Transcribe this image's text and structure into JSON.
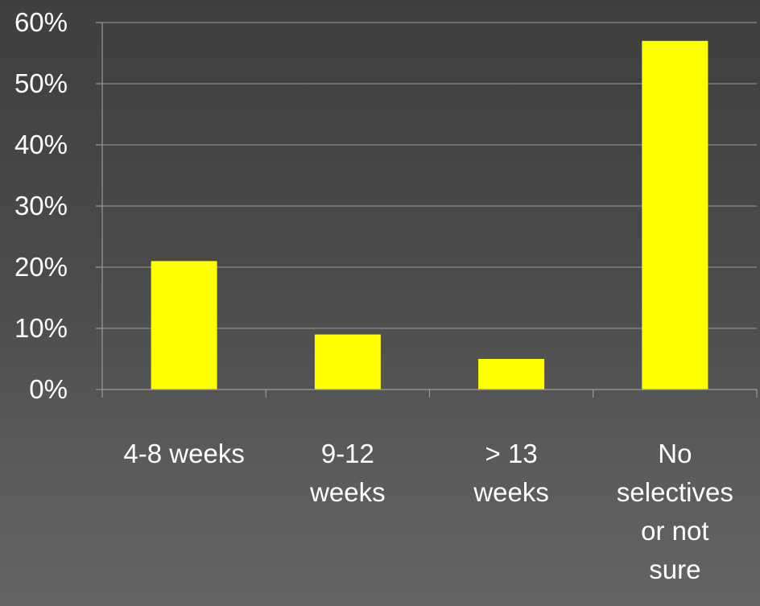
{
  "chart_data": {
    "type": "bar",
    "categories": [
      [
        "4-8 weeks"
      ],
      [
        "9-12",
        "weeks"
      ],
      [
        "> 13",
        "weeks"
      ],
      [
        "No",
        "selectives",
        "or not",
        "sure"
      ]
    ],
    "values": [
      21,
      9,
      5,
      57
    ],
    "ylim": [
      0,
      60
    ],
    "yticks": [
      0,
      10,
      20,
      30,
      40,
      50,
      60
    ],
    "ytick_labels": [
      "0%",
      "10%",
      "20%",
      "30%",
      "40%",
      "50%",
      "60%"
    ],
    "grid": true,
    "colors": {
      "bar": "#ffff00",
      "grid": "#8a8a8a",
      "axis": "#9a9a9a",
      "text": "#ffffff"
    }
  }
}
